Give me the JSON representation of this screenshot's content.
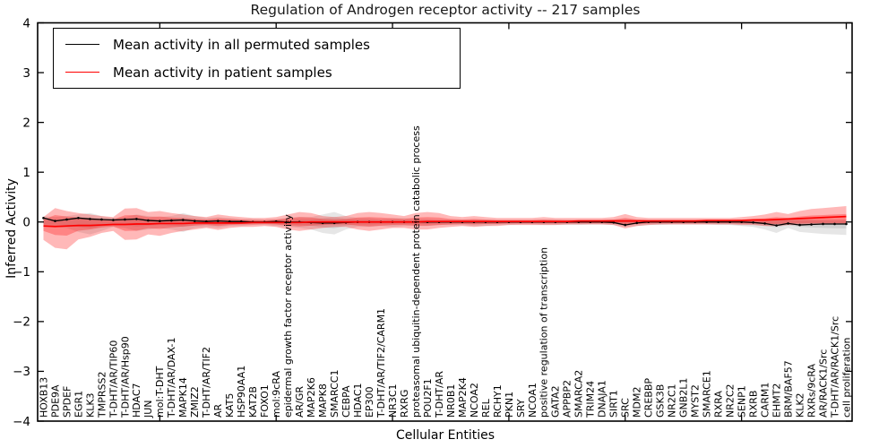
{
  "chart": {
    "title": "Regulation of Androgen receptor activity -- 217 samples",
    "xlabel": "Cellular Entities",
    "ylabel": "Inferred Activity",
    "legend": {
      "items": [
        {
          "label": "Mean activity in all permuted samples",
          "color": "#000000"
        },
        {
          "label": "Mean activity in patient samples",
          "color": "#ff0000"
        }
      ]
    }
  },
  "chart_data": {
    "type": "line",
    "title": "Regulation of Androgen receptor activity -- 217 samples",
    "xlabel": "Cellular Entities",
    "ylabel": "Inferred Activity",
    "ylim": [
      -4,
      4
    ],
    "yticks": [
      -4,
      -3,
      -2,
      -1,
      0,
      1,
      2,
      3,
      4
    ],
    "grid": false,
    "legend_position": "upper left",
    "categories": [
      "HOXB13",
      "PDE9A",
      "SPDEF",
      "EGR1",
      "KLK3",
      "TMPRSS2",
      "T-DHT/AR/TIP60",
      "T-DHT/AR/Hsp90",
      "HDAC7",
      "JUN",
      "mol:T-DHT",
      "T-DHT/AR/DAX-1",
      "MAPK14",
      "ZMIZ2",
      "T-DHT/AR/TIF2",
      "AR",
      "KAT5",
      "HSP90AA1",
      "KAT2B",
      "FOXO1",
      "mol:9cRA",
      "epidermal growth factor receptor activity",
      "AR/GR",
      "MAP2K6",
      "MAPK8",
      "SMARCC1",
      "CEBPA",
      "HDAC1",
      "EP300",
      "T-DHT/AR/TIF2/CARM1",
      "NR3C1",
      "RXRG",
      "proteasomal ubiquitin-dependent protein catabolic process",
      "POU2F1",
      "T-DHT/AR",
      "NR0B1",
      "MAP2K4",
      "NCOA2",
      "REL",
      "RCHY1",
      "PKN1",
      "SRY",
      "NCOA1",
      "positive regulation of transcription",
      "GATA2",
      "APPBP2",
      "SMARCA2",
      "TRIM24",
      "DNAJA1",
      "SIRT1",
      "SRC",
      "MDM2",
      "CREBBP",
      "GSK3B",
      "NR2C1",
      "GNB2L1",
      "MYST2",
      "SMARCE1",
      "RXRA",
      "NR2C2",
      "SENP1",
      "RXRB",
      "CARM1",
      "EHMT2",
      "BRM/BAF57",
      "KLK2",
      "RXRs/9cRA",
      "AR/RACK1/Src",
      "T-DHT/AR/RACK1/Src",
      "cell proliferation"
    ],
    "series": [
      {
        "name": "Mean activity in all permuted samples",
        "color": "#000000",
        "band_color": "#777777",
        "mean": [
          0.08,
          0.02,
          0.05,
          0.08,
          0.06,
          0.05,
          0.04,
          0.05,
          0.06,
          0.03,
          0.02,
          0.03,
          0.04,
          0.02,
          0.01,
          0.02,
          0.01,
          0.01,
          0,
          0,
          0.01,
          0,
          0,
          -0.01,
          -0.02,
          -0.02,
          -0.01,
          0,
          0,
          0,
          0,
          0,
          0,
          0,
          0,
          0,
          0,
          0,
          0,
          0,
          0,
          0,
          0,
          0,
          0,
          0,
          0,
          0,
          0,
          -0.01,
          -0.06,
          -0.02,
          0,
          0,
          0,
          0,
          0,
          0,
          0,
          0,
          0,
          -0.01,
          -0.03,
          -0.07,
          -0.03,
          -0.06,
          -0.05,
          -0.04,
          -0.04,
          -0.04
        ],
        "band_upper": [
          0.12,
          0.1,
          0.12,
          0.15,
          0.18,
          0.12,
          0.08,
          0.1,
          0.15,
          0.12,
          0.1,
          0.12,
          0.18,
          0.12,
          0.08,
          0.1,
          0.08,
          0.06,
          0.06,
          0.05,
          0.06,
          0.08,
          0.1,
          0.1,
          0.15,
          0.2,
          0.12,
          0.08,
          0.08,
          0.06,
          0.08,
          0.08,
          0.06,
          0.06,
          0.05,
          0.05,
          0.05,
          0.05,
          0.05,
          0.04,
          0.04,
          0.04,
          0.04,
          0.05,
          0.05,
          0.04,
          0.04,
          0.04,
          0.04,
          0.05,
          0.06,
          0.05,
          0.04,
          0.04,
          0.04,
          0.04,
          0.04,
          0.04,
          0.04,
          0.04,
          0.05,
          0.05,
          0.06,
          0.06,
          0.08,
          0.06,
          0.06,
          0.05,
          0.05,
          0.05
        ],
        "band_lower": [
          -0.1,
          -0.1,
          -0.12,
          -0.2,
          -0.25,
          -0.18,
          -0.1,
          -0.12,
          -0.18,
          -0.15,
          -0.12,
          -0.15,
          -0.2,
          -0.12,
          -0.1,
          -0.12,
          -0.08,
          -0.08,
          -0.06,
          -0.06,
          -0.08,
          -0.1,
          -0.12,
          -0.15,
          -0.22,
          -0.25,
          -0.15,
          -0.1,
          -0.1,
          -0.08,
          -0.1,
          -0.08,
          -0.08,
          -0.08,
          -0.06,
          -0.06,
          -0.06,
          -0.08,
          -0.08,
          -0.06,
          -0.06,
          -0.05,
          -0.05,
          -0.06,
          -0.06,
          -0.06,
          -0.06,
          -0.05,
          -0.05,
          -0.06,
          -0.1,
          -0.08,
          -0.06,
          -0.06,
          -0.05,
          -0.05,
          -0.05,
          -0.05,
          -0.06,
          -0.06,
          -0.08,
          -0.1,
          -0.15,
          -0.22,
          -0.12,
          -0.2,
          -0.22,
          -0.24,
          -0.25,
          -0.26
        ]
      },
      {
        "name": "Mean activity in patient samples",
        "color": "#ff0000",
        "band_color": "#ff0000",
        "mean": [
          -0.08,
          -0.09,
          -0.08,
          -0.07,
          -0.07,
          -0.06,
          -0.05,
          -0.05,
          -0.04,
          -0.04,
          -0.03,
          -0.03,
          -0.03,
          -0.02,
          -0.02,
          -0.02,
          -0.02,
          -0.02,
          -0.01,
          -0.01,
          -0.01,
          -0.01,
          -0.01,
          0,
          0,
          0,
          0,
          0,
          0,
          0,
          0,
          0,
          0,
          0.01,
          0.01,
          0.01,
          0.01,
          0.01,
          0.01,
          0.01,
          0.01,
          0.01,
          0.01,
          0.01,
          0.01,
          0.01,
          0.02,
          0.02,
          0.02,
          0.02,
          0.02,
          0.02,
          0.02,
          0.02,
          0.02,
          0.02,
          0.02,
          0.03,
          0.03,
          0.03,
          0.03,
          0.04,
          0.04,
          0.05,
          0.06,
          0.07,
          0.08,
          0.09,
          0.1,
          0.11
        ],
        "band_upper": [
          0.1,
          0.28,
          0.22,
          0.18,
          0.15,
          0.12,
          0.1,
          0.27,
          0.28,
          0.2,
          0.22,
          0.18,
          0.15,
          0.12,
          0.1,
          0.15,
          0.12,
          0.1,
          0.08,
          0.08,
          0.1,
          0.15,
          0.2,
          0.18,
          0.12,
          0.1,
          0.12,
          0.18,
          0.2,
          0.18,
          0.15,
          0.12,
          0.18,
          0.2,
          0.18,
          0.12,
          0.1,
          0.12,
          0.1,
          0.08,
          0.08,
          0.08,
          0.08,
          0.1,
          0.08,
          0.08,
          0.08,
          0.08,
          0.08,
          0.1,
          0.16,
          0.1,
          0.08,
          0.08,
          0.08,
          0.08,
          0.08,
          0.08,
          0.08,
          0.08,
          0.1,
          0.12,
          0.15,
          0.2,
          0.16,
          0.22,
          0.26,
          0.28,
          0.3,
          0.32
        ],
        "band_lower": [
          -0.36,
          -0.52,
          -0.55,
          -0.35,
          -0.3,
          -0.22,
          -0.18,
          -0.36,
          -0.35,
          -0.25,
          -0.28,
          -0.22,
          -0.18,
          -0.15,
          -0.12,
          -0.16,
          -0.12,
          -0.1,
          -0.1,
          -0.08,
          -0.1,
          -0.15,
          -0.18,
          -0.15,
          -0.12,
          -0.1,
          -0.1,
          -0.15,
          -0.18,
          -0.15,
          -0.12,
          -0.12,
          -0.15,
          -0.15,
          -0.12,
          -0.1,
          -0.08,
          -0.1,
          -0.08,
          -0.08,
          -0.06,
          -0.06,
          -0.06,
          -0.06,
          -0.06,
          -0.05,
          -0.05,
          -0.05,
          -0.05,
          -0.06,
          -0.13,
          -0.08,
          -0.06,
          -0.05,
          -0.05,
          -0.05,
          -0.05,
          -0.05,
          -0.05,
          -0.05,
          -0.06,
          -0.06,
          -0.08,
          -0.08,
          -0.06,
          -0.06,
          -0.05,
          -0.04,
          -0.04,
          -0.05
        ]
      }
    ]
  }
}
